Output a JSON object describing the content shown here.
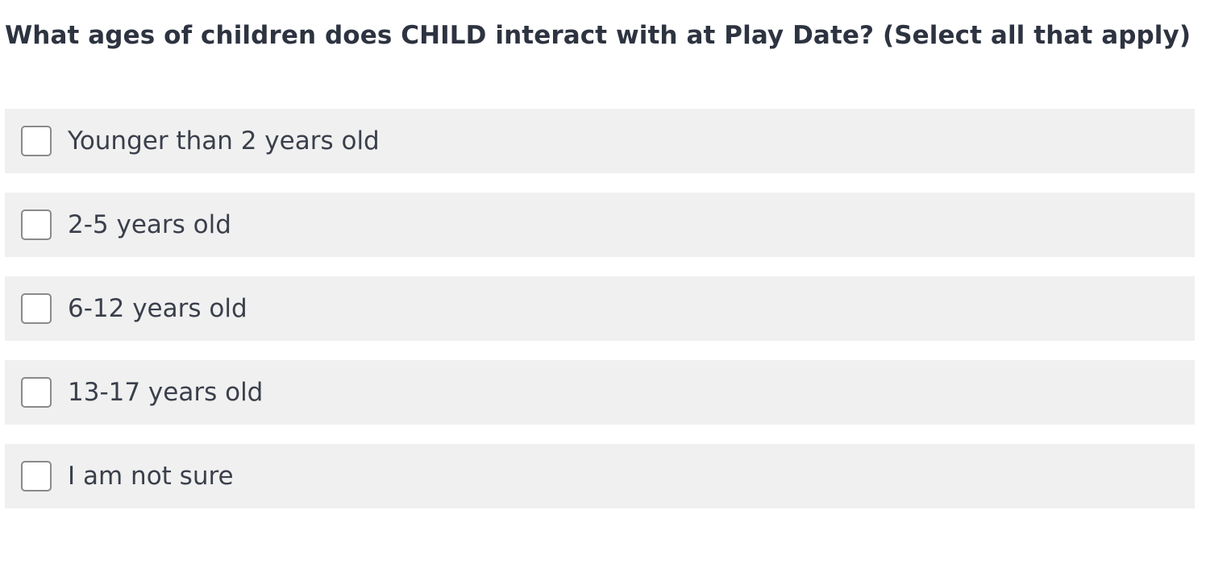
{
  "question": {
    "text": "What ages of children does CHILD interact with at Play Date? (Select all that apply)"
  },
  "options": [
    {
      "label": "Younger than 2 years old",
      "checked": false
    },
    {
      "label": "2-5 years old",
      "checked": false
    },
    {
      "label": "6-12 years old",
      "checked": false
    },
    {
      "label": "13-17 years old",
      "checked": false
    },
    {
      "label": "I am not sure",
      "checked": false
    }
  ],
  "colors": {
    "question_text": "#2d3340",
    "option_background": "#f0f0f0",
    "checkbox_border": "#8a8a8a",
    "option_text": "#3a3f4b"
  }
}
